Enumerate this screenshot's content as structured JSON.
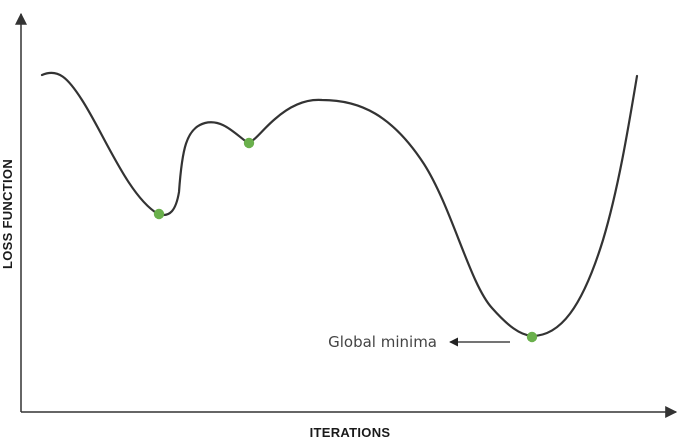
{
  "diagram": {
    "x_axis_label": "ITERATIONS",
    "y_axis_label": "LOSS FUNCTION",
    "annotation": "Global minima",
    "colors": {
      "curve": "#333333",
      "axis": "#333333",
      "point": "#6ab04c",
      "annotation_arrow": "#222222"
    },
    "marked_points": [
      "local-minimum",
      "saddle-point",
      "global-minimum"
    ]
  }
}
